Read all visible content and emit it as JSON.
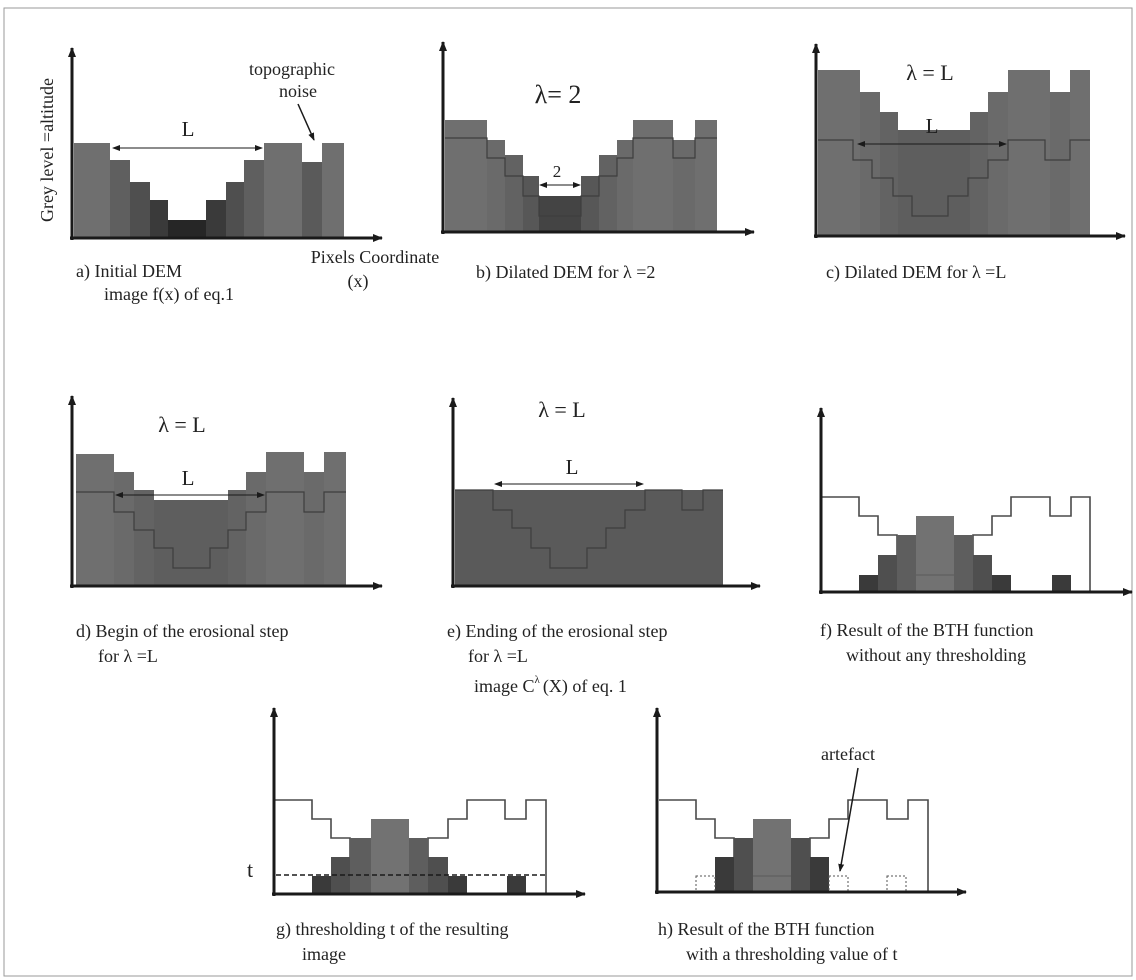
{
  "panels": {
    "a": {
      "y_label": "Grey level =altitude",
      "x_label_1": "Pixels Coordinate",
      "x_label_2": "(x)",
      "noise_label_1": "topographic",
      "noise_label_2": "noise",
      "length_label": "L",
      "caption_1": "a) Initial DEM",
      "caption_2": "image f(x) of eq.1"
    },
    "b": {
      "lambda_label": "λ= 2",
      "width_label": "2",
      "caption_1": "b) Dilated DEM for λ =2"
    },
    "c": {
      "lambda_label": "λ = L",
      "length_label": "L",
      "caption_1": "c) Dilated DEM for λ =L"
    },
    "d": {
      "lambda_label": "λ = L",
      "length_label": "L",
      "caption_1": "d) Begin of the erosional step",
      "caption_2": "for λ =L"
    },
    "e": {
      "lambda_label": "λ = L",
      "length_label": "L",
      "caption_1": "e) Ending of the erosional step",
      "caption_2": "for λ =L",
      "caption_3": "image C",
      "caption_3_sup": "λ",
      "caption_3_end": "(X) of eq. 1"
    },
    "f": {
      "caption_1": "f) Result of the BTH function",
      "caption_2": "without any  thresholding"
    },
    "g": {
      "threshold_label": "t",
      "caption_1": "g)  thresholding t of the resulting",
      "caption_2": "image"
    },
    "h": {
      "artefact_label": "artefact",
      "caption_1": "h) Result of the BTH function",
      "caption_2": "with a thresholding value of t"
    }
  },
  "colors": {
    "axis": "#1a1a1a",
    "bar_mid": "#6f6f6f",
    "bar_dark": "#4f4f4f",
    "bar_darker": "#3a3a3a",
    "bar_darkest": "#262626",
    "bar_light": "#858585",
    "outline": "#4a4a4a",
    "border": "#9a9a9a"
  }
}
